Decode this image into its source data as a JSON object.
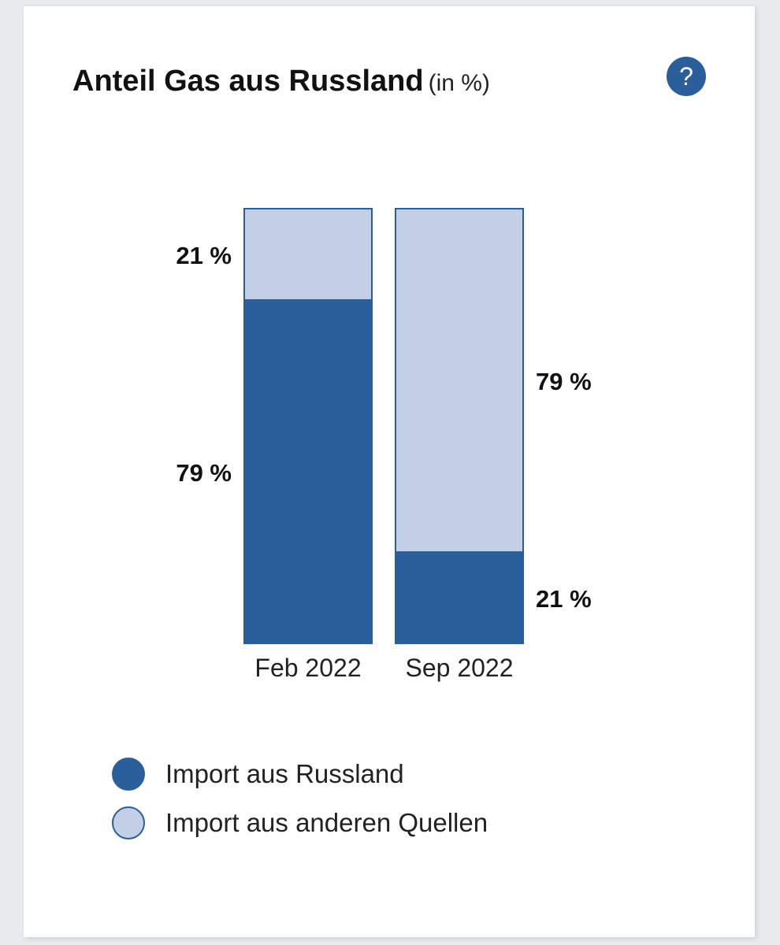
{
  "title": "Anteil Gas aus Russland",
  "title_unit": "(in %)",
  "help_icon": "question-icon",
  "help_label": "?",
  "colors": {
    "russia": "#2b5f9c",
    "other": "#c3cfe4",
    "border": "#2b5f9c"
  },
  "chart_data": {
    "type": "bar",
    "stacked": true,
    "categories": [
      "Feb 2022",
      "Sep 2022"
    ],
    "series": [
      {
        "name": "Import aus Russland",
        "values": [
          79,
          21
        ],
        "labels": [
          "79 %",
          "21 %"
        ]
      },
      {
        "name": "Import aus anderen Quellen",
        "values": [
          21,
          79
        ],
        "labels": [
          "21 %",
          "79 %"
        ]
      }
    ],
    "ylim": [
      0,
      100
    ],
    "grid": false,
    "legend_position": "bottom"
  },
  "legend": [
    {
      "label": "Import aus Russland"
    },
    {
      "label": "Import aus anderen Quellen"
    }
  ]
}
